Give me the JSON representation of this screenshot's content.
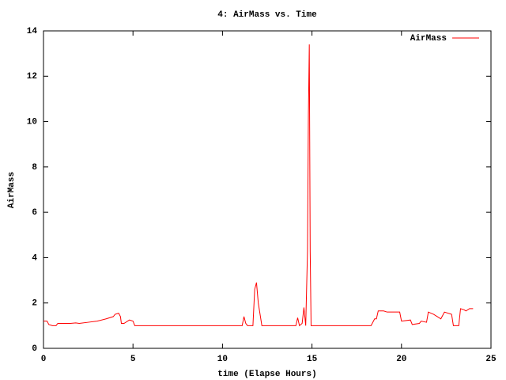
{
  "chart_data": {
    "type": "line",
    "title": "4: AirMass vs. Time",
    "x_label": "time (Elapse Hours)",
    "y_label": "AirMass",
    "x": [
      0,
      0.2,
      0.3,
      0.5,
      0.7,
      0.8,
      1.5,
      1.8,
      2.0,
      2.5,
      3.0,
      3.5,
      3.9,
      4.0,
      4.2,
      4.3,
      4.35,
      4.5,
      4.8,
      5.0,
      5.1,
      11.1,
      11.2,
      11.3,
      11.4,
      11.7,
      11.8,
      11.9,
      12.0,
      12.2,
      14.1,
      14.2,
      14.3,
      14.45,
      14.55,
      14.65,
      14.75,
      14.8,
      14.85,
      14.9,
      14.95,
      18.3,
      18.5,
      18.6,
      18.7,
      19.0,
      19.2,
      19.9,
      20.0,
      20.5,
      20.6,
      21.0,
      21.1,
      21.4,
      21.5,
      21.8,
      22.0,
      22.2,
      22.4,
      22.8,
      22.9,
      23.2,
      23.3,
      23.5,
      23.6,
      23.8,
      24.0
    ],
    "series": [
      {
        "name": "AirMass",
        "color": "#ff0000",
        "values": [
          1.2,
          1.2,
          1.05,
          1.0,
          1.0,
          1.1,
          1.1,
          1.12,
          1.1,
          1.15,
          1.2,
          1.3,
          1.4,
          1.5,
          1.55,
          1.4,
          1.1,
          1.1,
          1.25,
          1.2,
          1.0,
          1.0,
          1.4,
          1.1,
          1.0,
          1.0,
          2.6,
          2.9,
          2.0,
          1.0,
          1.0,
          1.35,
          1.0,
          1.1,
          1.8,
          1.0,
          4.3,
          10.3,
          13.4,
          4.3,
          1.0,
          1.0,
          1.3,
          1.3,
          1.65,
          1.65,
          1.6,
          1.6,
          1.2,
          1.25,
          1.05,
          1.1,
          1.2,
          1.15,
          1.6,
          1.5,
          1.4,
          1.3,
          1.6,
          1.5,
          1.0,
          1.0,
          1.75,
          1.7,
          1.65,
          1.75,
          1.75
        ]
      }
    ],
    "xlim": [
      0,
      25
    ],
    "xticks": [
      0,
      5,
      10,
      15,
      20,
      25
    ],
    "ylim": [
      0,
      14
    ],
    "yticks": [
      0,
      2,
      4,
      6,
      8,
      10,
      12,
      14
    ],
    "legend": "top-right",
    "grid": false
  }
}
